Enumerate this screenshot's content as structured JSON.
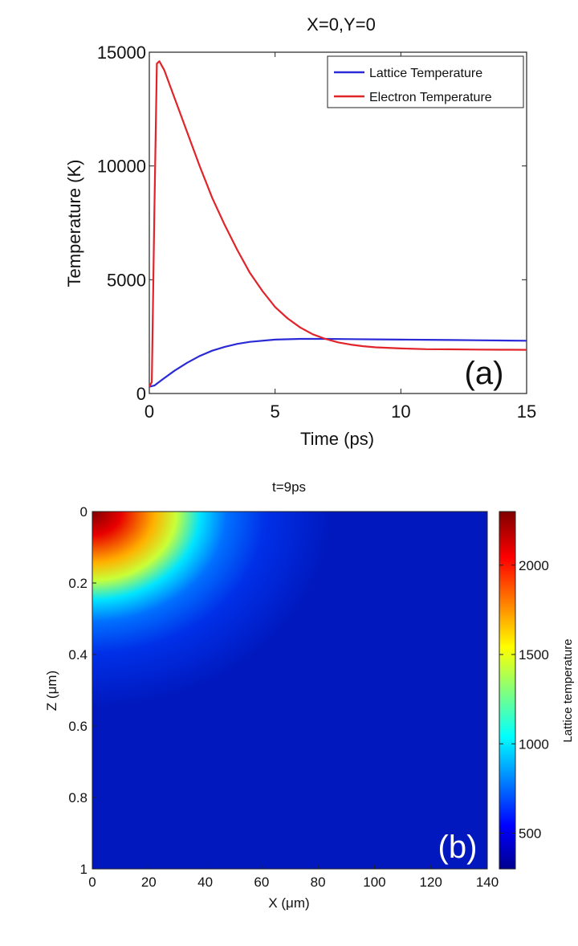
{
  "chart_data": [
    {
      "panel": "(a)",
      "type": "line",
      "title": "X=0,Y=0",
      "xlabel": "Time (ps)",
      "ylabel": "Temperature (K)",
      "xlim": [
        0,
        15
      ],
      "ylim": [
        0,
        15000
      ],
      "xticks": [
        "0",
        "5",
        "10",
        "15"
      ],
      "yticks": [
        "0",
        "5000",
        "10000",
        "15000"
      ],
      "grid": false,
      "legend_position": "top-right",
      "panel_label": "(a)",
      "series": [
        {
          "name": "Lattice Temperature",
          "color": "#2a2ad6",
          "x": [
            0.0,
            0.2,
            0.5,
            1.0,
            1.5,
            2.0,
            2.5,
            3.0,
            3.5,
            4.0,
            5.0,
            6.0,
            7.0,
            8.0,
            9.0,
            10.0,
            11.0,
            12.0,
            13.0,
            14.0,
            15.0
          ],
          "y": [
            300,
            350,
            600,
            1000,
            1350,
            1650,
            1880,
            2050,
            2180,
            2270,
            2370,
            2400,
            2400,
            2390,
            2380,
            2370,
            2360,
            2350,
            2340,
            2330,
            2320
          ]
        },
        {
          "name": "Electron Temperature",
          "color": "#e0242a",
          "x": [
            0.0,
            0.1,
            0.2,
            0.3,
            0.4,
            0.6,
            1.0,
            1.5,
            2.0,
            2.5,
            3.0,
            3.5,
            4.0,
            4.5,
            5.0,
            5.5,
            6.0,
            6.5,
            7.0,
            7.5,
            8.0,
            8.5,
            9.0,
            10.0,
            11.0,
            12.0,
            13.0,
            14.0,
            15.0
          ],
          "y": [
            300,
            500,
            8000,
            14500,
            14600,
            14200,
            13000,
            11500,
            10000,
            8600,
            7400,
            6300,
            5300,
            4500,
            3800,
            3300,
            2900,
            2600,
            2400,
            2250,
            2150,
            2080,
            2030,
            1980,
            1950,
            1940,
            1930,
            1925,
            1920
          ]
        }
      ]
    },
    {
      "panel": "(b)",
      "type": "heatmap",
      "title": "t=9ps",
      "xlabel": "X (μm)",
      "ylabel": "Z (μm)",
      "xlim": [
        0,
        140
      ],
      "ylim": [
        0,
        1
      ],
      "y_axis_inverted": true,
      "xticks": [
        "0",
        "20",
        "40",
        "60",
        "80",
        "100",
        "120",
        "140"
      ],
      "yticks": [
        "0",
        "0.2",
        "0.4",
        "0.6",
        "0.8",
        "1"
      ],
      "colorbar_label": "Lattice temperature",
      "colorbar_range": [
        300,
        2300
      ],
      "colorbar_ticks": [
        "500",
        "1000",
        "1500",
        "2000"
      ],
      "colormap": "jet",
      "panel_label": "(b)",
      "field": {
        "max_value": 2300,
        "max_location": [
          0,
          0
        ],
        "background_value": 380,
        "radial_extent_x_um": 60,
        "depth_extent_z_um": 0.5
      }
    }
  ]
}
